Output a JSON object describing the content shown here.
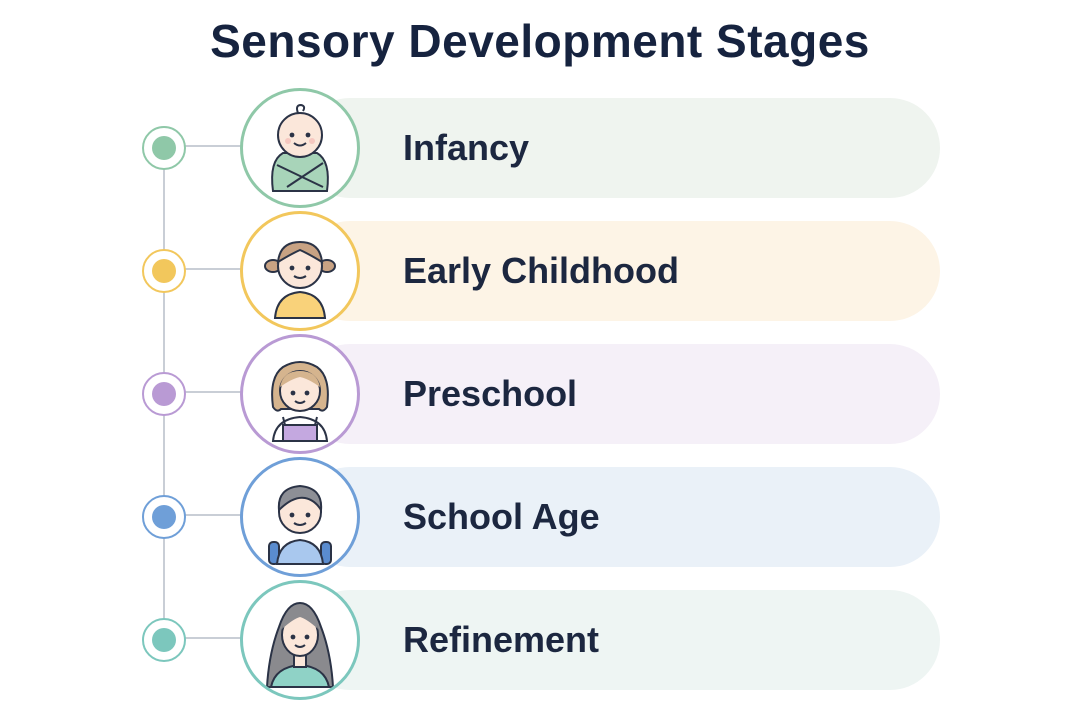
{
  "title": "Sensory Development Stages",
  "stages": [
    {
      "label": "Infancy",
      "icon": "swaddled-baby-icon",
      "accent": "#8fc8a8",
      "band": "#eff4ef"
    },
    {
      "label": "Early Childhood",
      "icon": "toddler-pigtails-icon",
      "accent": "#f2c75c",
      "band": "#fdf4e6"
    },
    {
      "label": "Preschool",
      "icon": "preschool-girl-overalls-icon",
      "accent": "#b99ad4",
      "band": "#f5f0f8"
    },
    {
      "label": "School Age",
      "icon": "schoolboy-backpack-icon",
      "accent": "#6f9fd8",
      "band": "#eaf1f8"
    },
    {
      "label": "Refinement",
      "icon": "young-woman-icon",
      "accent": "#7cc7bd",
      "band": "#eef5f3"
    }
  ]
}
